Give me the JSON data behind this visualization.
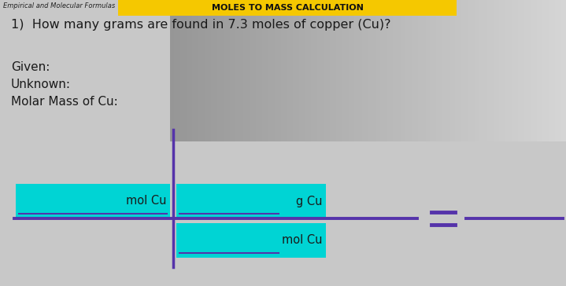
{
  "background_color": "#c8c8c8",
  "header_bar_color": "#f5c800",
  "header_text": "MOLES TO MASS CALCULATION",
  "top_label": "Empirical and Molecular Formulas",
  "question": "1)  How many grams are found in 7.3 moles of copper (Cu)?",
  "given_label": "Given:",
  "unknown_label": "Unknown:",
  "molar_mass_label": "Molar Mass of Cu:",
  "cyan_color": "#00d4d4",
  "line_color": "#5533aa",
  "text_color": "#1a1a1a",
  "numerator_left_label": "mol Cu",
  "numerator_right_label": "g Cu",
  "denominator_label": "mol Cu",
  "fig_width": 7.19,
  "fig_height": 3.64,
  "dpi": 100
}
